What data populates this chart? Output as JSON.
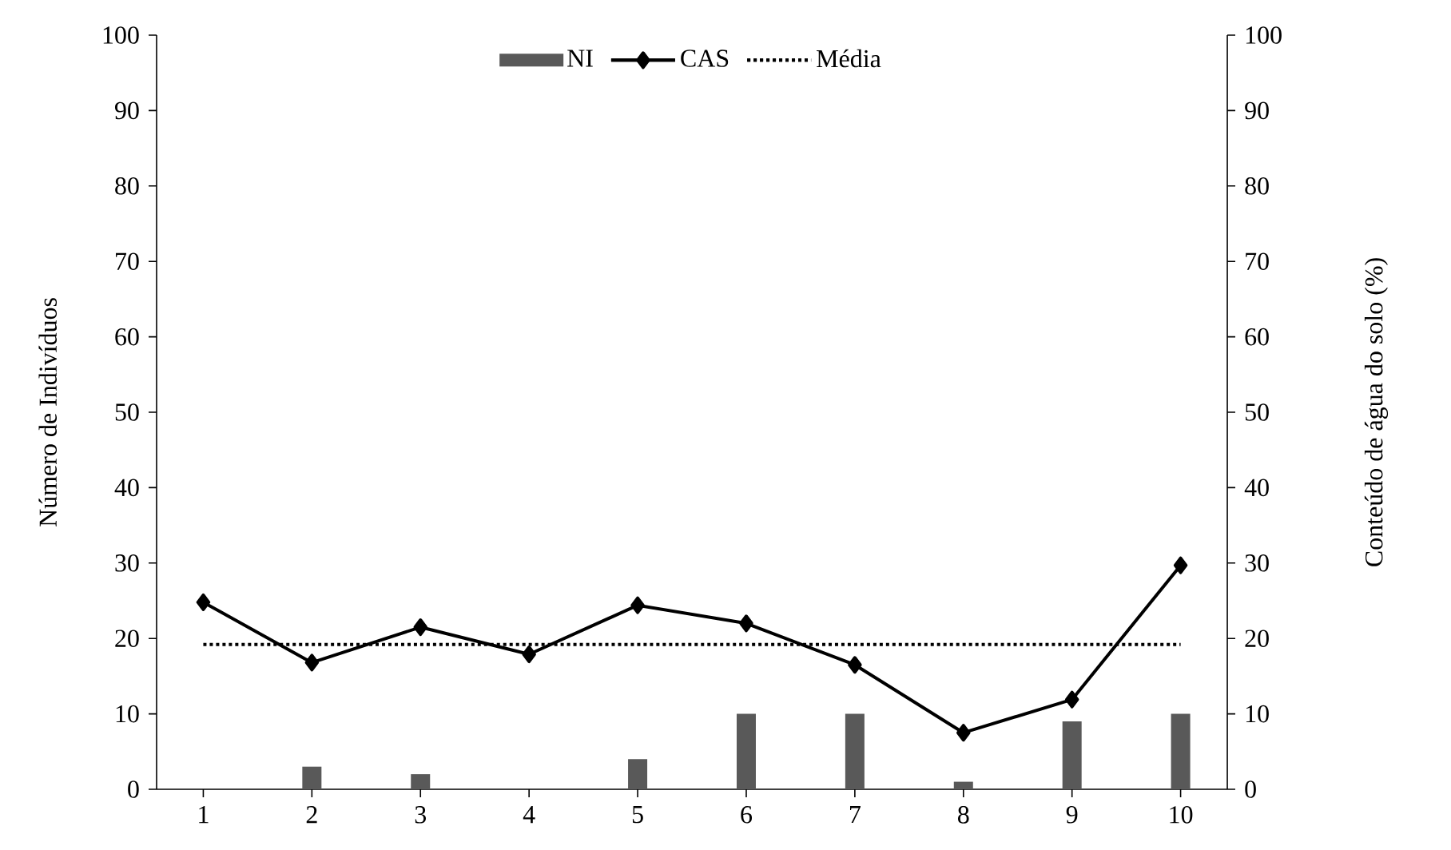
{
  "chart_data": {
    "type": "bar",
    "categories": [
      "1",
      "2",
      "3",
      "4",
      "5",
      "6",
      "7",
      "8",
      "9",
      "10"
    ],
    "series": [
      {
        "name": "NI",
        "color": "#595959",
        "values": [
          0,
          3,
          2,
          0,
          4,
          10,
          10,
          1,
          9,
          10
        ]
      },
      {
        "name": "CAS",
        "type": "line",
        "axis": "y2",
        "color": "#000000",
        "marker": "diamond",
        "line_style": "solid",
        "values": [
          24.8,
          16.8,
          21.5,
          17.9,
          24.4,
          22,
          16.5,
          7.5,
          11.9,
          29.7
        ]
      },
      {
        "name": "Média",
        "type": "line",
        "color": "#000000",
        "marker": "none",
        "line_style": "dotted",
        "values": [
          19.2,
          19.2,
          19.2,
          19.2,
          19.2,
          19.2,
          19.2,
          19.2,
          19.2,
          19.2
        ]
      }
    ],
    "ylabel": "Número de Indivíduos",
    "y2label": "Conteúdo de água do solo (%)",
    "ylim": [
      0,
      100
    ],
    "yticks": [
      0,
      10,
      20,
      30,
      40,
      50,
      60,
      70,
      80,
      90,
      100
    ],
    "y2lim": [
      0,
      100
    ],
    "y2ticks": [
      0,
      10,
      20,
      30,
      40,
      50,
      60,
      70,
      80,
      90,
      100
    ],
    "legend": "top",
    "grid": false
  }
}
